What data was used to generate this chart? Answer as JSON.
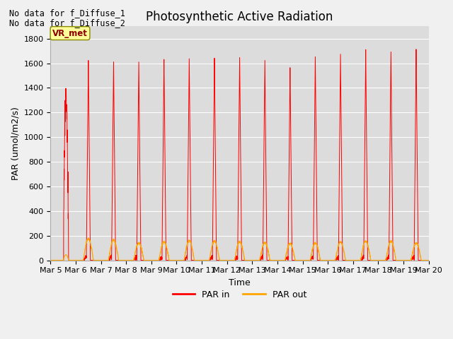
{
  "title": "Photosynthetic Active Radiation",
  "ylabel": "PAR (umol/m2/s)",
  "xlabel": "Time",
  "annotations_top_left": [
    "No data for f_Diffuse_1",
    "No data for f_Diffuse_2"
  ],
  "legend_label1": "PAR in",
  "legend_label2": "PAR out",
  "color_par_in": "#ff0000",
  "color_par_out": "#ffa500",
  "plot_bg_color": "#dcdcdc",
  "vr_met_box_color": "#ffff99",
  "vr_met_text_color": "#8b0000",
  "ylim": [
    0,
    1900
  ],
  "yticks": [
    0,
    200,
    400,
    600,
    800,
    1000,
    1200,
    1400,
    1600,
    1800
  ],
  "n_days": 15,
  "start_day": 5,
  "peaks_in": [
    1330,
    1620,
    1610,
    1600,
    1630,
    1630,
    1650,
    1650,
    1630,
    1570,
    1660,
    1680,
    1700,
    1700,
    1700
  ],
  "peaks_out": [
    90,
    175,
    165,
    140,
    150,
    160,
    155,
    150,
    145,
    135,
    140,
    148,
    155,
    155,
    140
  ],
  "title_fontsize": 12,
  "axis_fontsize": 9,
  "tick_fontsize": 8
}
